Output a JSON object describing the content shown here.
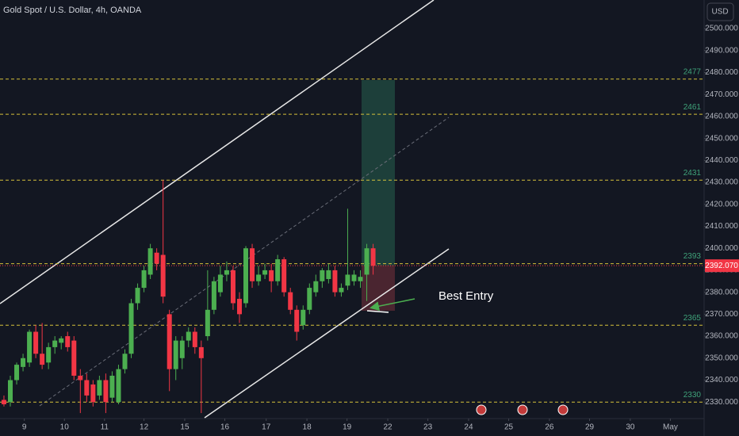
{
  "chart_data": {
    "type": "candlestick",
    "title": "Gold Spot / U.S. Dollar, 4h, OANDA",
    "currency": "USD",
    "x": [
      0,
      1,
      2,
      3,
      4,
      5,
      6,
      7,
      8,
      9,
      10,
      11,
      12,
      13,
      14,
      15,
      16,
      17,
      18,
      19,
      20,
      21,
      22,
      23,
      24,
      25,
      26,
      27,
      28,
      29,
      30,
      31,
      32,
      33,
      34,
      35,
      36,
      37,
      38,
      39,
      40,
      41,
      42,
      43,
      44,
      45,
      46,
      47,
      48,
      49,
      50,
      51,
      52,
      53,
      54,
      55,
      56,
      57,
      58
    ],
    "open": [
      2331,
      2330,
      2340,
      2346,
      2348,
      2362,
      2352,
      2348,
      2355,
      2357,
      2360,
      2358,
      2342,
      2340,
      2338,
      2333,
      2340,
      2332,
      2330,
      2345,
      2352,
      2375,
      2382,
      2388,
      2398,
      2397,
      2370,
      2345,
      2350,
      2358,
      2362,
      2355,
      2360,
      2372,
      2380,
      2388,
      2390,
      2377,
      2375,
      2400,
      2385,
      2388,
      2390,
      2385,
      2395,
      2380,
      2372,
      2365,
      2372,
      2380,
      2385,
      2386,
      2390,
      2380,
      2383,
      2385,
      2385,
      2388,
      2400
    ],
    "high": [
      2333,
      2342,
      2348,
      2352,
      2363,
      2365,
      2366,
      2357,
      2360,
      2360,
      2362,
      2360,
      2345,
      2343,
      2340,
      2342,
      2343,
      2344,
      2347,
      2354,
      2377,
      2384,
      2392,
      2402,
      2400,
      2431,
      2372,
      2360,
      2360,
      2364,
      2364,
      2358,
      2390,
      2387,
      2392,
      2394,
      2392,
      2380,
      2401,
      2402,
      2392,
      2393,
      2393,
      2397,
      2396,
      2382,
      2374,
      2374,
      2384,
      2388,
      2391,
      2393,
      2392,
      2384,
      2418,
      2390,
      2390,
      2402,
      2402
    ],
    "low": [
      2328,
      2328,
      2338,
      2344,
      2346,
      2350,
      2345,
      2345,
      2352,
      2354,
      2353,
      2340,
      2325,
      2330,
      2328,
      2331,
      2325,
      2330,
      2329,
      2343,
      2350,
      2372,
      2380,
      2386,
      2390,
      2375,
      2335,
      2340,
      2345,
      2355,
      2352,
      2325,
      2358,
      2370,
      2378,
      2385,
      2372,
      2366,
      2373,
      2382,
      2383,
      2386,
      2380,
      2383,
      2378,
      2370,
      2358,
      2363,
      2370,
      2378,
      2382,
      2384,
      2378,
      2378,
      2381,
      2383,
      2382,
      2376,
      2388
    ],
    "close": [
      2329,
      2340,
      2347,
      2350,
      2362,
      2352,
      2347,
      2355,
      2358,
      2359,
      2355,
      2342,
      2340,
      2333,
      2330,
      2340,
      2330,
      2342,
      2345,
      2352,
      2375,
      2382,
      2390,
      2400,
      2393,
      2378,
      2345,
      2358,
      2358,
      2362,
      2355,
      2350,
      2372,
      2385,
      2388,
      2390,
      2375,
      2370,
      2400,
      2385,
      2388,
      2390,
      2385,
      2395,
      2380,
      2372,
      2362,
      2372,
      2382,
      2385,
      2390,
      2390,
      2380,
      2382,
      2388,
      2388,
      2387,
      2400,
      2392.07
    ],
    "up_color": "#4caf50",
    "down_color": "#f23645",
    "xlim": [
      -0.62,
      110.0
    ],
    "xticks": [
      {
        "value": 3.2,
        "label": "9"
      },
      {
        "value": 9.5,
        "label": "10"
      },
      {
        "value": 15.8,
        "label": "11"
      },
      {
        "value": 22.0,
        "label": "12"
      },
      {
        "value": 28.4,
        "label": "15"
      },
      {
        "value": 34.7,
        "label": "16"
      },
      {
        "value": 41.2,
        "label": "17"
      },
      {
        "value": 47.6,
        "label": "18"
      },
      {
        "value": 53.9,
        "label": "19"
      },
      {
        "value": 60.3,
        "label": "22"
      },
      {
        "value": 66.6,
        "label": "23"
      },
      {
        "value": 73.0,
        "label": "24"
      },
      {
        "value": 79.3,
        "label": "25"
      },
      {
        "value": 85.7,
        "label": "26"
      },
      {
        "value": 92.0,
        "label": "29"
      },
      {
        "value": 98.4,
        "label": "30"
      },
      {
        "value": 104.7,
        "label": "May"
      }
    ],
    "ylim": [
      2322.5,
      2513
    ],
    "yticks": [
      {
        "value": 2330,
        "label": "2330.000"
      },
      {
        "value": 2340,
        "label": "2340.000"
      },
      {
        "value": 2350,
        "label": "2350.000"
      },
      {
        "value": 2360,
        "label": "2360.000"
      },
      {
        "value": 2370,
        "label": "2370.000"
      },
      {
        "value": 2380,
        "label": "2380.000"
      },
      {
        "value": 2390,
        "label": "2390.000"
      },
      {
        "value": 2400,
        "label": "2400.000"
      },
      {
        "value": 2410,
        "label": "2410.000"
      },
      {
        "value": 2420,
        "label": "2420.000"
      },
      {
        "value": 2430,
        "label": "2430.000"
      },
      {
        "value": 2440,
        "label": "2440.000"
      },
      {
        "value": 2450,
        "label": "2450.000"
      },
      {
        "value": 2460,
        "label": "2460.000"
      },
      {
        "value": 2470,
        "label": "2470.000"
      },
      {
        "value": 2480,
        "label": "2480.000"
      },
      {
        "value": 2490,
        "label": "2490.000"
      },
      {
        "value": 2500,
        "label": "2500.000"
      }
    ],
    "levels": [
      2477,
      2461,
      2431,
      2393,
      2365,
      2330
    ],
    "level_color": "#d4c03a",
    "level_label_color": "#3fa37a",
    "last_price": {
      "value": 2392.07,
      "label": "2392.070"
    },
    "annotation": "Best Entry"
  }
}
